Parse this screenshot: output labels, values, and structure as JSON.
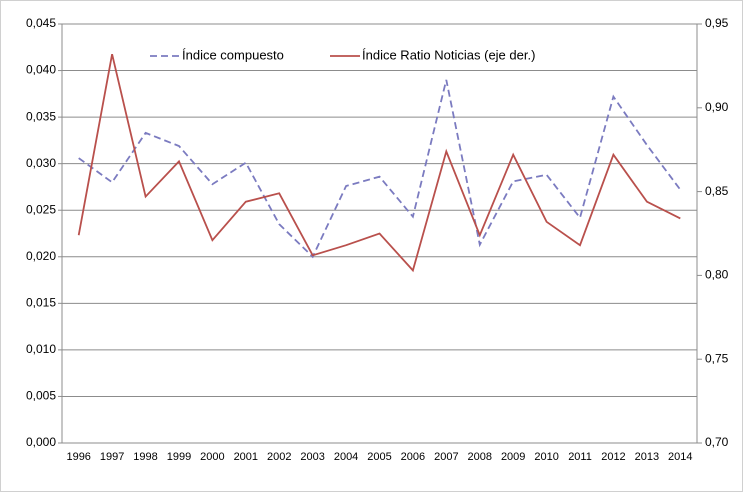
{
  "chart_data": {
    "type": "line",
    "categories": [
      "1996",
      "1997",
      "1998",
      "1999",
      "2000",
      "2001",
      "2002",
      "2003",
      "2004",
      "2005",
      "2006",
      "2007",
      "2008",
      "2009",
      "2010",
      "2011",
      "2012",
      "2013",
      "2014"
    ],
    "series": [
      {
        "name": "Índice compuesto",
        "color": "#7b7bc0",
        "dashed": true,
        "values": [
          0.0306,
          0.028,
          0.0333,
          0.0319,
          0.0278,
          0.0301,
          0.0235,
          0.02,
          0.0276,
          0.0286,
          0.0243,
          0.039,
          0.0213,
          0.0281,
          0.0288,
          0.0242,
          0.0372,
          0.032,
          0.0272
        ]
      },
      {
        "name": "Índice Ratio Noticias (eje der.)",
        "color": "#b9504c",
        "axis": "y2",
        "values": [
          0.824,
          0.932,
          0.847,
          0.868,
          0.821,
          0.844,
          0.849,
          0.812,
          0.818,
          0.825,
          0.803,
          0.874,
          0.824,
          0.872,
          0.832,
          0.818,
          0.872,
          0.844,
          0.834
        ]
      }
    ],
    "ylim": [
      0,
      0.045
    ],
    "yticks": [
      {
        "value": 0,
        "label": "0,000"
      },
      {
        "value": 0.005,
        "label": "0,005"
      },
      {
        "value": 0.01,
        "label": "0,010"
      },
      {
        "value": 0.015,
        "label": "0,015"
      },
      {
        "value": 0.02,
        "label": "0,020"
      },
      {
        "value": 0.025,
        "label": "0,025"
      },
      {
        "value": 0.03,
        "label": "0,030"
      },
      {
        "value": 0.035,
        "label": "0,035"
      },
      {
        "value": 0.04,
        "label": "0,040"
      },
      {
        "value": 0.045,
        "label": "0,045"
      }
    ],
    "y2lim": [
      0.7,
      0.95
    ],
    "y2ticks": [
      {
        "value": 0.7,
        "label": "0,70"
      },
      {
        "value": 0.75,
        "label": "0,75"
      },
      {
        "value": 0.8,
        "label": "0,80"
      },
      {
        "value": 0.85,
        "label": "0,85"
      },
      {
        "value": 0.9,
        "label": "0,90"
      },
      {
        "value": 0.95,
        "label": "0,95"
      }
    ],
    "grid": true,
    "legend": "top"
  }
}
